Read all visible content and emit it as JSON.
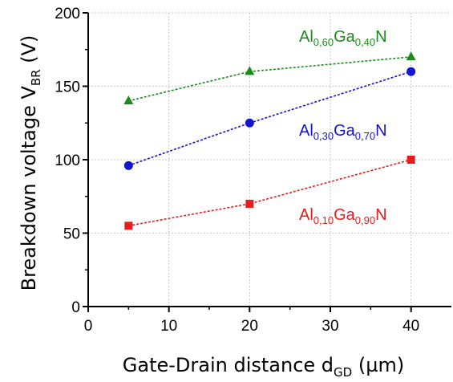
{
  "chart_data": {
    "type": "scatter",
    "title": "",
    "xlabel": {
      "main": "Gate-Drain distance d",
      "sub": "GD",
      "unit": " (µm)"
    },
    "ylabel": {
      "main": "Breakdown voltage V",
      "sub": "BR",
      "unit": " (V)"
    },
    "xlim": [
      0,
      45
    ],
    "ylim": [
      0,
      200
    ],
    "xticks": [
      0,
      10,
      20,
      30,
      40
    ],
    "yticks": [
      0,
      50,
      100,
      150,
      200
    ],
    "grid": true,
    "series": [
      {
        "color": "#1e8a1e",
        "marker": "triangle",
        "x": [
          5,
          20,
          40
        ],
        "y": [
          140,
          160,
          170
        ],
        "label_parts": [
          {
            "t": "Al",
            "sub": false
          },
          {
            "t": "0,60",
            "sub": true
          },
          {
            "t": "Ga",
            "sub": false
          },
          {
            "t": "0,40",
            "sub": true
          },
          {
            "t": "N",
            "sub": false
          }
        ]
      },
      {
        "color": "#1414d2",
        "marker": "circle",
        "x": [
          5,
          20,
          40
        ],
        "y": [
          96,
          125,
          160
        ],
        "label_parts": [
          {
            "t": "Al",
            "sub": false
          },
          {
            "t": "0,30",
            "sub": true
          },
          {
            "t": "Ga",
            "sub": false
          },
          {
            "t": "0,70",
            "sub": true
          },
          {
            "t": "N",
            "sub": false
          }
        ]
      },
      {
        "color": "#e81c1c",
        "marker": "square",
        "x": [
          5,
          20,
          40
        ],
        "y": [
          55,
          70,
          100
        ],
        "label_parts": [
          {
            "t": "Al",
            "sub": false
          },
          {
            "t": "0,10",
            "sub": true
          },
          {
            "t": "Ga",
            "sub": false
          },
          {
            "t": "0,90",
            "sub": true
          },
          {
            "t": "N",
            "sub": false
          }
        ]
      }
    ]
  }
}
